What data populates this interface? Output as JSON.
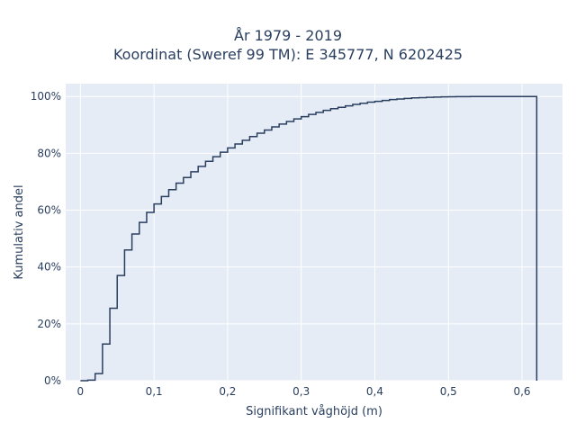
{
  "chart_data": {
    "type": "line",
    "step": true,
    "title_line1": "År 1979 - 2019",
    "title_line2": "Koordinat (Sweref 99 TM): E 345777, N 6202425",
    "xlabel": "Signifikant våghöjd (m)",
    "ylabel": "Kumulativ andel",
    "xlim": [
      -0.02,
      0.655
    ],
    "ylim": [
      0,
      1.045
    ],
    "x_ticks": [
      0,
      0.1,
      0.2,
      0.3,
      0.4,
      0.5,
      0.6
    ],
    "x_tick_labels": [
      "0",
      "0,1",
      "0,2",
      "0,3",
      "0,4",
      "0,5",
      "0,6"
    ],
    "y_ticks": [
      0,
      0.2,
      0.4,
      0.6,
      0.8,
      1.0
    ],
    "y_tick_labels": [
      "0%",
      "20%",
      "40%",
      "60%",
      "80%",
      "100%"
    ],
    "grid": true,
    "colors": {
      "line": "#2a3f5f",
      "plot_bg": "#e5ecf6",
      "grid": "#ffffff"
    },
    "series": [
      {
        "x": [
          0.01,
          0.02,
          0.03,
          0.04,
          0.05,
          0.06,
          0.07,
          0.08,
          0.09,
          0.1,
          0.11,
          0.12,
          0.13,
          0.14,
          0.15,
          0.16,
          0.17,
          0.18,
          0.19,
          0.2,
          0.21,
          0.22,
          0.23,
          0.24,
          0.25,
          0.26,
          0.27,
          0.28,
          0.29,
          0.3,
          0.31,
          0.32,
          0.33,
          0.34,
          0.35,
          0.36,
          0.37,
          0.38,
          0.39,
          0.4,
          0.41,
          0.42,
          0.43,
          0.44,
          0.45,
          0.46,
          0.47,
          0.48,
          0.49,
          0.5,
          0.51,
          0.52,
          0.53,
          0.54,
          0.55,
          0.56,
          0.62
        ],
        "y": [
          0.002,
          0.025,
          0.129,
          0.255,
          0.37,
          0.46,
          0.516,
          0.557,
          0.592,
          0.622,
          0.648,
          0.672,
          0.695,
          0.715,
          0.735,
          0.754,
          0.772,
          0.788,
          0.804,
          0.819,
          0.833,
          0.846,
          0.859,
          0.871,
          0.882,
          0.893,
          0.903,
          0.912,
          0.921,
          0.929,
          0.937,
          0.944,
          0.951,
          0.957,
          0.962,
          0.967,
          0.972,
          0.976,
          0.98,
          0.983,
          0.986,
          0.989,
          0.991,
          0.993,
          0.995,
          0.996,
          0.997,
          0.998,
          0.9985,
          0.999,
          0.9993,
          0.9995,
          0.9997,
          0.9998,
          0.9999,
          1.0,
          1.0
        ]
      }
    ]
  }
}
